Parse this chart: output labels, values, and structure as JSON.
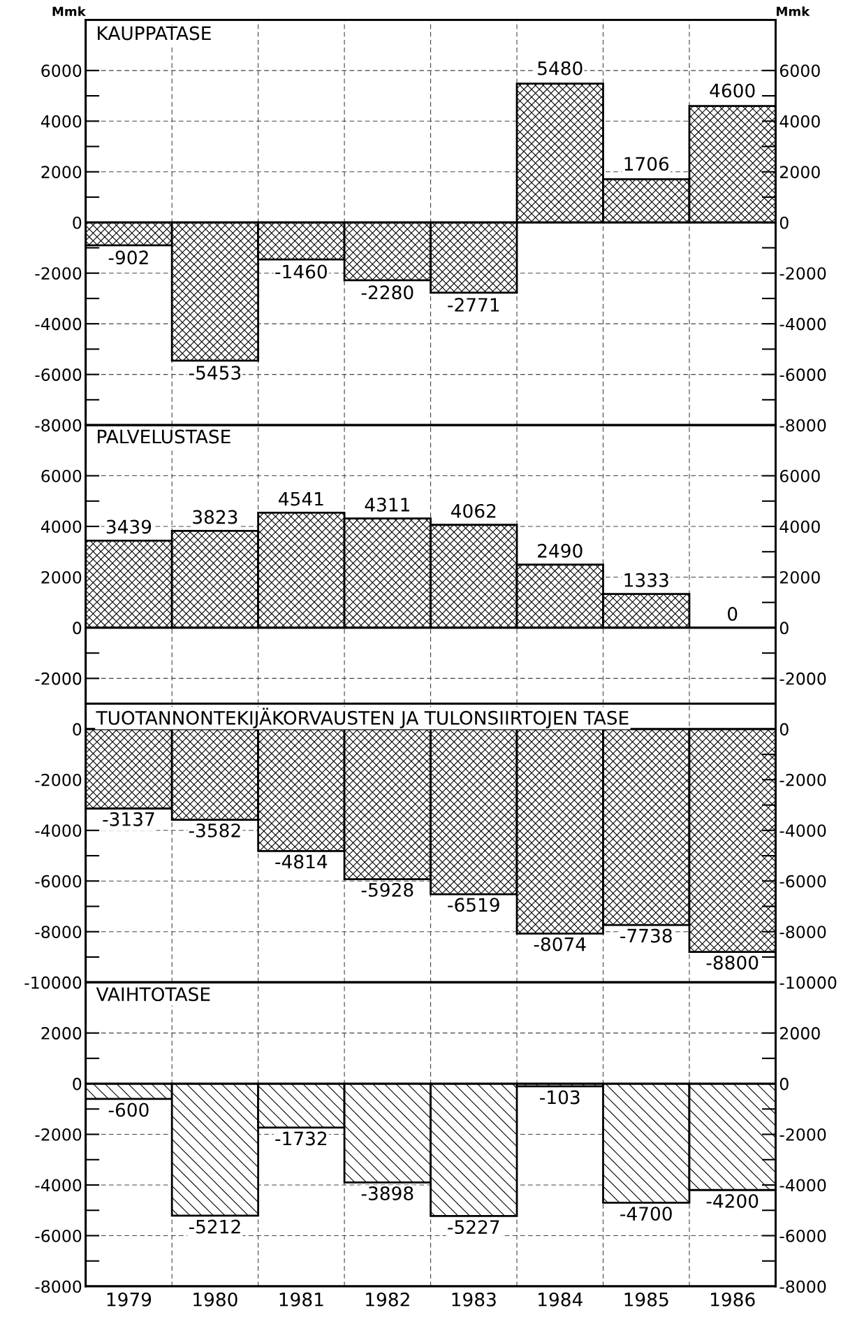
{
  "chart_data": [
    {
      "type": "bar",
      "title": "KAUPPATASE",
      "ylabel": "Mmk",
      "y2label": "Mmk",
      "categories": [
        "1979",
        "1980",
        "1981",
        "1982",
        "1983",
        "1984",
        "1985",
        "1986"
      ],
      "values": [
        -902,
        -5453,
        -1460,
        -2280,
        -2771,
        5480,
        1706,
        4600
      ],
      "color": "#000000",
      "data_labels": true,
      "ylim": [
        -8000,
        8000
      ],
      "yticks": [
        -8000,
        -6000,
        -4000,
        -2000,
        0,
        2000,
        4000,
        6000
      ],
      "y2lim": [
        -8000,
        8000
      ],
      "y2ticks": [
        -8000,
        -6000,
        -4000,
        -2000,
        0,
        2000,
        4000,
        6000
      ],
      "grid": true,
      "legend": false,
      "tick_labels": "y"
    },
    {
      "type": "bar",
      "title": "PALVELUSTASE",
      "categories": [
        "1979",
        "1980",
        "1981",
        "1982",
        "1983",
        "1984",
        "1985",
        "1986"
      ],
      "values": [
        3439,
        3823,
        4541,
        4311,
        4062,
        2490,
        1333,
        0
      ],
      "color": "#000000",
      "data_labels": true,
      "ylim": [
        -3000,
        8000
      ],
      "yticks": [
        -2000,
        0,
        2000,
        4000,
        6000
      ],
      "y2lim": [
        -3000,
        8000
      ],
      "y2ticks": [
        -2000,
        0,
        2000,
        4000,
        6000
      ],
      "grid": true,
      "legend": false,
      "tick_labels": "y"
    },
    {
      "type": "bar",
      "title": "TUOTANNONTEKIJÄKORVAUSTEN JA TULONSIIRTOJEN TASE",
      "categories": [
        "1979",
        "1980",
        "1981",
        "1982",
        "1983",
        "1984",
        "1985",
        "1986"
      ],
      "values": [
        -3137,
        -3582,
        -4814,
        -5928,
        -6519,
        -8074,
        -7738,
        -8800
      ],
      "color": "#000000",
      "data_labels": true,
      "ylim": [
        -10000,
        1000
      ],
      "yticks": [
        -10000,
        -8000,
        -6000,
        -4000,
        -2000,
        0
      ],
      "y2lim": [
        -10000,
        1000
      ],
      "y2ticks": [
        -10000,
        -8000,
        -6000,
        -4000,
        -2000,
        0
      ],
      "grid": true,
      "legend": false,
      "tick_labels": "y"
    },
    {
      "type": "bar",
      "title": "VAIHTOTASE",
      "categories": [
        "1979",
        "1980",
        "1981",
        "1982",
        "1983",
        "1984",
        "1985",
        "1986"
      ],
      "values": [
        -600,
        -5212,
        -1732,
        -3898,
        -5227,
        -103,
        -4700,
        -4200
      ],
      "color": "#000000",
      "data_labels": true,
      "ylim": [
        -8000,
        4000
      ],
      "yticks": [
        -8000,
        -6000,
        -4000,
        -2000,
        0,
        2000
      ],
      "y2lim": [
        -8000,
        4000
      ],
      "y2ticks": [
        -8000,
        -6000,
        -4000,
        -2000,
        0,
        2000
      ],
      "grid": true,
      "legend": false
    }
  ]
}
